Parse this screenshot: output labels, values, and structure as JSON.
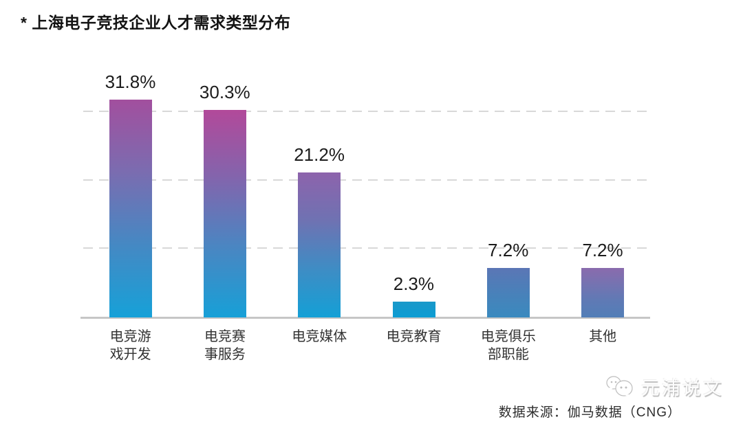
{
  "header": {
    "title": "* 上海电子竞技企业人才需求类型分布"
  },
  "chart_data": {
    "type": "bar",
    "title": "上海电子竞技企业人才需求类型分布",
    "categories": [
      "电竞游戏开发",
      "电竞赛事服务",
      "电竞媒体",
      "电竞教育",
      "电竞俱乐部职能",
      "其他"
    ],
    "category_lines": [
      [
        "电竞游",
        "戏开发"
      ],
      [
        "电竞赛",
        "事服务"
      ],
      [
        "电竞媒体"
      ],
      [
        "电竞教育"
      ],
      [
        "电竞俱乐",
        "部职能"
      ],
      [
        "其他"
      ]
    ],
    "values": [
      31.8,
      30.3,
      21.2,
      2.3,
      7.2,
      7.2
    ],
    "value_labels": [
      "31.8%",
      "30.3%",
      "21.2%",
      "2.3%",
      "7.2%",
      "7.2%"
    ],
    "unit": "percent",
    "xlabel": "",
    "ylabel": "",
    "ylim": [
      0,
      34.3
    ],
    "gridlines_percent": [
      10,
      20,
      30
    ],
    "grid_style": "dashed-horizontal",
    "legend": "none",
    "bar_gradient_stops": [
      [
        "#a24f9e",
        "#7b6cb0",
        "#4688c3",
        "#16a1d8"
      ],
      [
        "#b2499a",
        "#8265ad",
        "#4a86c2",
        "#17a0d7"
      ],
      [
        "#8d63ac",
        "#6f72b2",
        "#3f8cc4",
        "#14a0d6"
      ],
      [
        "#1a99ca",
        "#1599cc",
        "#109bd0",
        "#0d9dd3"
      ],
      [
        "#5b76b5",
        "#4f7db8",
        "#4484bb",
        "#3a8abf"
      ],
      [
        "#8a6bad",
        "#7573b1",
        "#5f7ab5",
        "#527eb7"
      ]
    ],
    "colors": {
      "gridline": "#d8d8d8",
      "axis": "#c6c6c6",
      "value_label": "#1c1c1c",
      "category_label": "#333333"
    }
  },
  "footer": {
    "source": "数据来源：伽马数据（CNG）"
  },
  "watermark": {
    "text": "元浦说文",
    "icon": "chat-faces-logo"
  }
}
